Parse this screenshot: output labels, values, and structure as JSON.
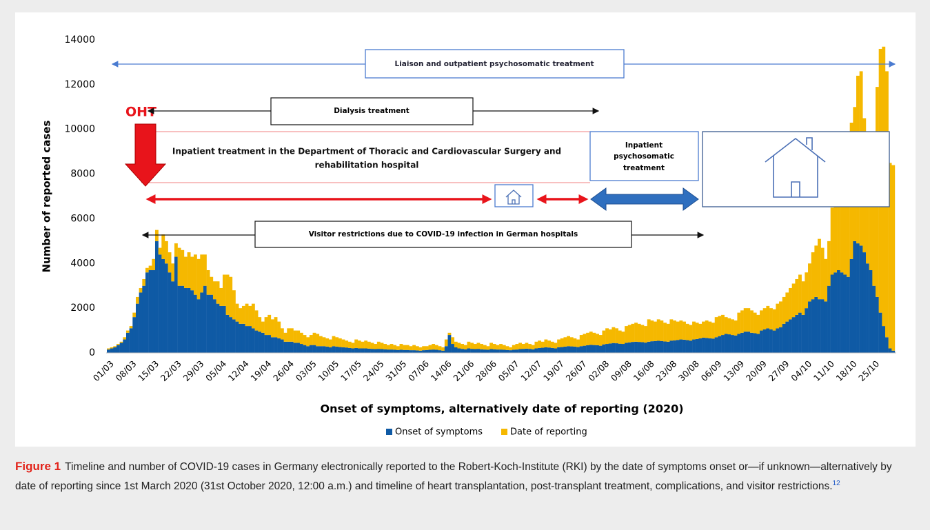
{
  "chart_data": {
    "type": "stacked_bar",
    "ylabel": "Number of reported cases",
    "xlabel": "Onset of symptoms, alternatively date of reporting (2020)",
    "ylim": [
      0,
      14000
    ],
    "yticks": [
      0,
      2000,
      4000,
      6000,
      8000,
      10000,
      12000,
      14000
    ],
    "categories": [
      "01/03",
      null,
      null,
      null,
      null,
      null,
      null,
      "08/03",
      null,
      null,
      null,
      null,
      null,
      null,
      "15/03",
      null,
      null,
      null,
      null,
      null,
      null,
      "22/03",
      null,
      null,
      null,
      null,
      null,
      null,
      "29/03",
      null,
      null,
      null,
      null,
      null,
      null,
      "05/04",
      null,
      null,
      null,
      null,
      null,
      null,
      "12/04",
      null,
      null,
      null,
      null,
      null,
      null,
      "19/04",
      null,
      null,
      null,
      null,
      null,
      null,
      "26/04",
      null,
      null,
      null,
      null,
      null,
      null,
      "03/05",
      null,
      null,
      null,
      null,
      null,
      null,
      "10/05",
      null,
      null,
      null,
      null,
      null,
      null,
      "17/05",
      null,
      null,
      null,
      null,
      null,
      null,
      "24/05",
      null,
      null,
      null,
      null,
      null,
      null,
      "31/05",
      null,
      null,
      null,
      null,
      null,
      null,
      "07/06",
      null,
      null,
      null,
      null,
      null,
      null,
      "14/06",
      null,
      null,
      null,
      null,
      null,
      null,
      "21/06",
      null,
      null,
      null,
      null,
      null,
      null,
      "28/06",
      null,
      null,
      null,
      null,
      null,
      null,
      "05/07",
      null,
      null,
      null,
      null,
      null,
      null,
      "12/07",
      null,
      null,
      null,
      null,
      null,
      null,
      "19/07",
      null,
      null,
      null,
      null,
      null,
      null,
      "26/07",
      null,
      null,
      null,
      null,
      null,
      null,
      "02/08",
      null,
      null,
      null,
      null,
      null,
      null,
      "09/08",
      null,
      null,
      null,
      null,
      null,
      null,
      "16/08",
      null,
      null,
      null,
      null,
      null,
      null,
      "23/08",
      null,
      null,
      null,
      null,
      null,
      null,
      "30/08",
      null,
      null,
      null,
      null,
      null,
      null,
      "06/09",
      null,
      null,
      null,
      null,
      null,
      null,
      "13/09",
      null,
      null,
      null,
      null,
      null,
      null,
      "20/09",
      null,
      null,
      null,
      null,
      null,
      null,
      "27/09",
      null,
      null,
      null,
      null,
      null,
      null,
      "04/10",
      null,
      null,
      null,
      null,
      null,
      null,
      "11/10",
      null,
      null,
      null,
      null,
      null,
      null,
      "18/10",
      null,
      null,
      null,
      null,
      null,
      null,
      "25/10",
      null,
      null,
      null,
      null,
      null,
      null
    ],
    "series": [
      {
        "name": "Onset of symptoms",
        "color": "#0f5aa5",
        "values": [
          150,
          200,
          250,
          350,
          450,
          600,
          900,
          1100,
          1600,
          2200,
          2700,
          3000,
          3600,
          3700,
          3700,
          5000,
          4400,
          4200,
          4000,
          3600,
          3200,
          4300,
          3000,
          3000,
          2900,
          2900,
          2800,
          2600,
          2400,
          2700,
          3000,
          2600,
          2600,
          2400,
          2200,
          2100,
          2100,
          1700,
          1600,
          1500,
          1400,
          1300,
          1300,
          1200,
          1200,
          1100,
          1000,
          950,
          900,
          800,
          800,
          700,
          700,
          650,
          600,
          500,
          500,
          500,
          450,
          450,
          400,
          350,
          300,
          350,
          350,
          300,
          300,
          300,
          280,
          250,
          300,
          280,
          260,
          250,
          240,
          220,
          200,
          220,
          200,
          200,
          200,
          190,
          180,
          170,
          180,
          170,
          160,
          150,
          150,
          140,
          130,
          140,
          130,
          130,
          120,
          120,
          110,
          100,
          120,
          130,
          140,
          150,
          140,
          120,
          100,
          300,
          800,
          400,
          250,
          200,
          180,
          160,
          200,
          180,
          170,
          180,
          160,
          150,
          140,
          170,
          160,
          150,
          150,
          140,
          130,
          120,
          140,
          150,
          170,
          180,
          190,
          180,
          160,
          200,
          220,
          230,
          250,
          240,
          220,
          200,
          250,
          260,
          280,
          300,
          290,
          280,
          260,
          300,
          320,
          340,
          360,
          350,
          340,
          320,
          380,
          400,
          420,
          440,
          430,
          410,
          400,
          450,
          470,
          490,
          500,
          490,
          480,
          460,
          500,
          520,
          530,
          540,
          530,
          510,
          500,
          550,
          560,
          580,
          600,
          590,
          570,
          550,
          600,
          620,
          650,
          680,
          670,
          650,
          640,
          700,
          750,
          800,
          850,
          830,
          800,
          780,
          850,
          900,
          950,
          950,
          900,
          880,
          850,
          1000,
          1050,
          1100,
          1050,
          1000,
          1100,
          1150,
          1300,
          1400,
          1500,
          1600,
          1700,
          1800,
          1700,
          2000,
          2300,
          2400,
          2500,
          2400,
          2400,
          2300,
          3000,
          3500,
          3600,
          3700,
          3600,
          3500,
          3400,
          4200,
          5000,
          4900,
          4800,
          4500,
          4000,
          3700,
          3000,
          2500,
          1800,
          1200,
          700,
          200,
          100
        ]
      },
      {
        "name": "Date of reporting",
        "color": "#f5b800",
        "values": [
          50,
          50,
          50,
          50,
          50,
          100,
          100,
          100,
          200,
          300,
          200,
          300,
          200,
          200,
          500,
          500,
          300,
          1100,
          1000,
          900,
          800,
          600,
          1700,
          1600,
          1400,
          1600,
          1500,
          1800,
          1800,
          1700,
          1400,
          1100,
          800,
          800,
          1000,
          800,
          1400,
          1800,
          1800,
          1300,
          800,
          700,
          800,
          1000,
          900,
          1100,
          900,
          650,
          500,
          800,
          900,
          800,
          900,
          750,
          500,
          400,
          600,
          600,
          550,
          550,
          500,
          450,
          400,
          450,
          550,
          550,
          450,
          400,
          370,
          350,
          450,
          420,
          390,
          350,
          310,
          280,
          250,
          380,
          350,
          300,
          350,
          310,
          270,
          230,
          320,
          280,
          240,
          200,
          250,
          210,
          170,
          260,
          220,
          220,
          180,
          230,
          190,
          150,
          180,
          170,
          210,
          250,
          210,
          180,
          150,
          300,
          100,
          300,
          250,
          250,
          220,
          190,
          300,
          270,
          230,
          270,
          240,
          200,
          160,
          280,
          240,
          200,
          250,
          210,
          170,
          130,
          210,
          250,
          280,
          220,
          260,
          220,
          190,
          300,
          330,
          270,
          350,
          310,
          280,
          250,
          350,
          390,
          420,
          450,
          410,
          370,
          340,
          500,
          530,
          560,
          590,
          550,
          510,
          480,
          620,
          700,
          630,
          710,
          670,
          590,
          550,
          750,
          780,
          810,
          850,
          810,
          770,
          740,
          1000,
          930,
          870,
          960,
          920,
          840,
          800,
          950,
          890,
          820,
          850,
          810,
          730,
          700,
          800,
          730,
          650,
          720,
          780,
          750,
          710,
          900,
          900,
          900,
          750,
          720,
          700,
          670,
          950,
          1000,
          1050,
          1050,
          1000,
          920,
          850,
          900,
          950,
          1000,
          950,
          950,
          1100,
          1150,
          1200,
          1300,
          1400,
          1500,
          1600,
          1700,
          1500,
          1600,
          1700,
          2100,
          2300,
          2700,
          2300,
          1900,
          2000,
          3000,
          3900,
          4300,
          4500,
          4000,
          3400,
          6100,
          6000,
          7500,
          7800,
          6000,
          5800,
          4800,
          4400,
          9400,
          11800,
          12500,
          11900,
          8300,
          8300
        ]
      }
    ],
    "annotations": {
      "liaison": "Liaison and outpatient psychosomatic treatment",
      "oht": "OHT",
      "dialysis": "Dialysis treatment",
      "inpatient": [
        "Inpatient treatment in the Department of Thoracic and Cardiovascular Surgery and",
        "rehabilitation hospital"
      ],
      "psychosomatic": [
        "Inpatient",
        "psychosomatic",
        "treatment"
      ],
      "visitor": "Visitor restrictions due to COVID-19 infection in German hospitals"
    }
  },
  "caption": {
    "label": "Figure 1",
    "text": "Timeline and number of COVID-19 cases in Germany electronically reported to the Robert-Koch-Institute (RKI) by the date of symptoms onset or—if unknown—alternatively by date of reporting since 1st March 2020 (31st October 2020, 12:00 a.m.) and timeline of heart transplantation, post-transplant treatment, complications, and visitor restrictions.",
    "ref": "12"
  }
}
